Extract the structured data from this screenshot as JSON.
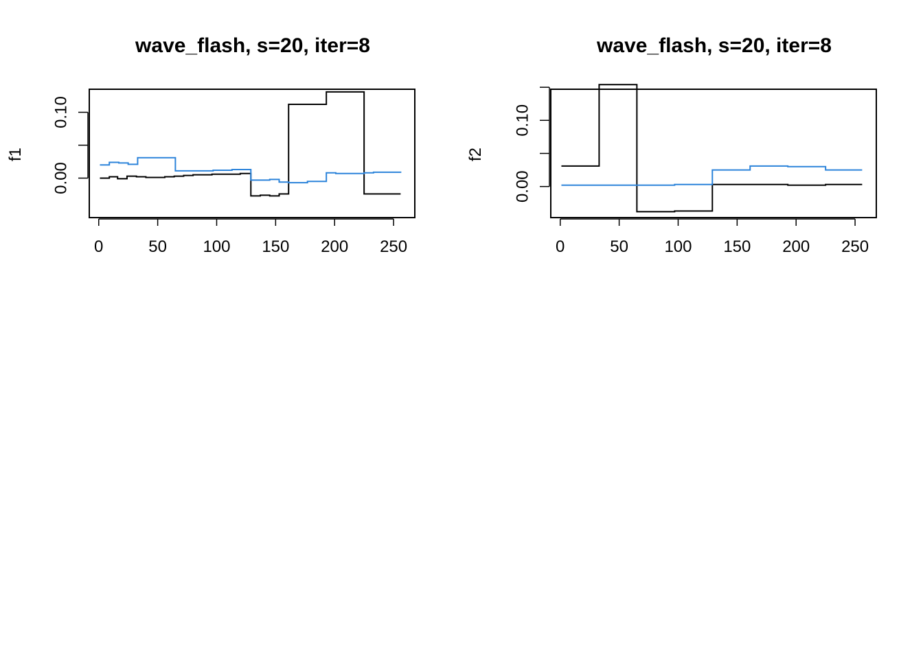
{
  "chart_data": [
    {
      "type": "line",
      "title": "wave_flash, s=20, iter=8",
      "xlabel": "",
      "ylabel": "f1",
      "xlim": [
        -8,
        268
      ],
      "ylim": [
        -0.06,
        0.135
      ],
      "x_ticks": [
        0,
        50,
        100,
        150,
        200,
        250
      ],
      "x_tick_labels": [
        "0",
        "50",
        "100",
        "150",
        "200",
        "250"
      ],
      "y_ticks": [
        0.0,
        0.05,
        0.1
      ],
      "y_tick_labels": [
        "0.00",
        "",
        "0.10"
      ],
      "grid": false,
      "legend": "none",
      "series": [
        {
          "color": "#000000",
          "steps": [
            [
              1,
              0.0
            ],
            [
              9,
              0.002
            ],
            [
              16,
              -0.001
            ],
            [
              24,
              0.003
            ],
            [
              32,
              0.002
            ],
            [
              40,
              0.001
            ],
            [
              56,
              0.002
            ],
            [
              64,
              0.003
            ],
            [
              72,
              0.004
            ],
            [
              80,
              0.005
            ],
            [
              96,
              0.006
            ],
            [
              112,
              0.006
            ],
            [
              120,
              0.007
            ],
            [
              129,
              -0.027
            ],
            [
              137,
              -0.026
            ],
            [
              145,
              -0.027
            ],
            [
              153,
              -0.024
            ],
            [
              161,
              0.112
            ],
            [
              193,
              0.131
            ],
            [
              225,
              -0.024
            ],
            [
              256,
              -0.024
            ]
          ]
        },
        {
          "color": "#2B83DA",
          "steps": [
            [
              1,
              0.02
            ],
            [
              9,
              0.024
            ],
            [
              17,
              0.023
            ],
            [
              25,
              0.021
            ],
            [
              33,
              0.031
            ],
            [
              65,
              0.011
            ],
            [
              97,
              0.012
            ],
            [
              113,
              0.013
            ],
            [
              129,
              -0.003
            ],
            [
              145,
              -0.002
            ],
            [
              153,
              -0.006
            ],
            [
              161,
              -0.007
            ],
            [
              177,
              -0.005
            ],
            [
              193,
              0.008
            ],
            [
              201,
              0.007
            ],
            [
              225,
              0.008
            ],
            [
              233,
              0.009
            ],
            [
              256,
              0.008
            ]
          ]
        }
      ]
    },
    {
      "type": "line",
      "title": "wave_flash, s=20, iter=8",
      "xlabel": "",
      "ylabel": "f2",
      "xlim": [
        -8,
        268
      ],
      "ylim": [
        -0.047,
        0.147
      ],
      "x_ticks": [
        0,
        50,
        100,
        150,
        200,
        250
      ],
      "x_tick_labels": [
        "0",
        "50",
        "100",
        "150",
        "200",
        "250"
      ],
      "y_ticks": [
        0.0,
        0.05,
        0.1,
        0.15
      ],
      "y_tick_labels": [
        "0.00",
        "",
        "0.10",
        ""
      ],
      "grid": false,
      "legend": "none",
      "series": [
        {
          "color": "#000000",
          "steps": [
            [
              1,
              0.031
            ],
            [
              33,
              0.154
            ],
            [
              65,
              -0.038
            ],
            [
              97,
              -0.037
            ],
            [
              129,
              0.003
            ],
            [
              193,
              0.002
            ],
            [
              225,
              0.003
            ],
            [
              256,
              0.003
            ]
          ]
        },
        {
          "color": "#2B83DA",
          "steps": [
            [
              1,
              0.002
            ],
            [
              97,
              0.003
            ],
            [
              129,
              0.025
            ],
            [
              161,
              0.031
            ],
            [
              193,
              0.03
            ],
            [
              225,
              0.025
            ],
            [
              256,
              0.025
            ]
          ]
        }
      ]
    }
  ]
}
